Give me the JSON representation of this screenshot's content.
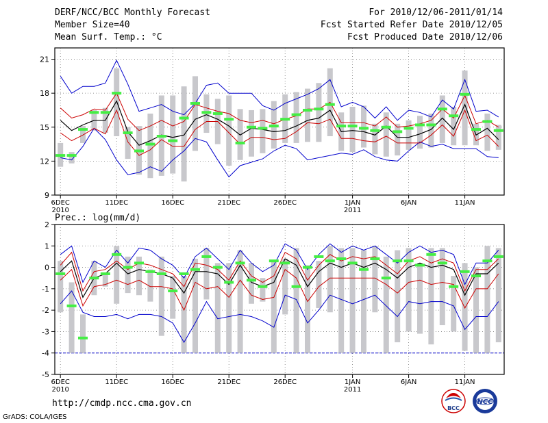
{
  "header": {
    "left": [
      "DERF/NCC/BCC Monthly Forecast",
      "Member Size=40",
      "Mean Surf. Temp.: °C"
    ],
    "right": [
      "For 2010/12/06-2011/01/14",
      "Fcst Started Refer Date 2010/12/05",
      "Fcst Produced Date 2010/12/06"
    ]
  },
  "footer": {
    "url": "http://cmdp.ncc.cma.gov.cn",
    "credit": "GrADS: COLA/IGES",
    "logo_left_text": "BCC",
    "logo_right_text": "NCC"
  },
  "colors": {
    "max_min": "#0000cc",
    "quartile": "#cc0000",
    "median": "#000000",
    "bar": "#c8c8cc",
    "mean": "#44ee44",
    "frame": "#000000"
  },
  "chart_data": [
    {
      "type": "line",
      "title": "Mean Surf. Temp.: °C",
      "ylim": [
        9,
        22
      ],
      "yticks": [
        9,
        12,
        15,
        18,
        21
      ],
      "xlim": [
        -0.5,
        39.5
      ],
      "xticks": [
        {
          "i": 0,
          "label": "6DEC",
          "year": "2010"
        },
        {
          "i": 5,
          "label": "11DEC"
        },
        {
          "i": 10,
          "label": "16DEC"
        },
        {
          "i": 15,
          "label": "21DEC"
        },
        {
          "i": 20,
          "label": "26DEC"
        },
        {
          "i": 26,
          "label": "1JAN",
          "year": "2011"
        },
        {
          "i": 31,
          "label": "6JAN"
        },
        {
          "i": 36,
          "label": "11JAN"
        }
      ],
      "series": [
        {
          "name": "max",
          "values": [
            19.5,
            18,
            18.6,
            18.6,
            18.9,
            20.9,
            18.8,
            16.4,
            16.7,
            17,
            16.4,
            16.1,
            17.1,
            18.7,
            18.9,
            18,
            18,
            18,
            16.9,
            16.5,
            17.1,
            17.5,
            17.9,
            18.4,
            19.2,
            16.8,
            17.2,
            16.8,
            15.8,
            16.8,
            15.6,
            16.5,
            16.3,
            15.9,
            17.4,
            16.6,
            19.2,
            16.4,
            16.5,
            15.9
          ]
        },
        {
          "name": "q_upper",
          "values": [
            16.7,
            15.8,
            16.1,
            16.6,
            16.5,
            18,
            15.7,
            14.7,
            15.1,
            15.6,
            15.1,
            15.5,
            17,
            16.7,
            16.4,
            16.2,
            15.6,
            15.4,
            15.6,
            15.3,
            15.7,
            16,
            16.6,
            16.6,
            17.2,
            15.4,
            15.4,
            15.4,
            15.1,
            15.9,
            15,
            15.1,
            15.3,
            15.6,
            16.6,
            15.8,
            17.8,
            15.3,
            15.6,
            15
          ]
        },
        {
          "name": "median",
          "values": [
            15.6,
            14.7,
            15.2,
            15.6,
            15.6,
            17.3,
            14.6,
            13.4,
            13.8,
            14.3,
            14.1,
            14.3,
            15.7,
            16.1,
            15.7,
            15.1,
            14.3,
            14.9,
            14.8,
            14.6,
            14.7,
            15.1,
            15.6,
            15.8,
            16.5,
            14.6,
            14.7,
            14.6,
            14.3,
            15.1,
            14.1,
            14.1,
            14.4,
            14.8,
            15.8,
            14.8,
            17,
            14.3,
            14.9,
            13.9
          ]
        },
        {
          "name": "q_lower",
          "values": [
            14.5,
            13.8,
            14.3,
            14.9,
            14.4,
            16.5,
            13.7,
            12.5,
            13,
            13.9,
            13.3,
            13.3,
            14.8,
            15.5,
            15.5,
            14.5,
            13.5,
            14.1,
            14.1,
            13.9,
            14,
            14.6,
            15.4,
            15.3,
            15.7,
            14,
            14,
            13.8,
            13.7,
            14.2,
            13.6,
            13.6,
            13.6,
            14.3,
            15.2,
            14.2,
            16.5,
            13.8,
            14.3,
            13.3
          ]
        },
        {
          "name": "min",
          "values": [
            12.3,
            12.1,
            13.3,
            14.9,
            13.9,
            12.1,
            10.8,
            11,
            11.5,
            11.1,
            12.1,
            12.9,
            14,
            13.7,
            12.1,
            10.6,
            11.6,
            11.9,
            12.2,
            12.9,
            13.4,
            13.1,
            12.1,
            12.3,
            12.5,
            12.7,
            12.6,
            13,
            12.4,
            12.1,
            12,
            12.9,
            13.7,
            13.3,
            13.5,
            13.1,
            13.1,
            13.1,
            12.4,
            12.3
          ]
        },
        {
          "name": "mean",
          "values": [
            12.5,
            12.5,
            14.8,
            16.3,
            16.3,
            18,
            14.5,
            12.9,
            13.5,
            14.2,
            13.8,
            15.8,
            17.1,
            16.3,
            16.2,
            15.7,
            13.6,
            15,
            14.9,
            15.1,
            15.7,
            16.1,
            16.5,
            16.6,
            17,
            15.1,
            15.1,
            14.9,
            14.7,
            15,
            14.6,
            14.9,
            15.2,
            15.2,
            16.6,
            16,
            17.9,
            14.8,
            15.5,
            14.7
          ]
        },
        {
          "name": "bar_low",
          "values": [
            11.5,
            11.8,
            13.6,
            14.7,
            14.5,
            14.2,
            12.2,
            10.8,
            10.5,
            10.7,
            10.9,
            10.2,
            12.9,
            14.5,
            13.5,
            11.6,
            12.1,
            12.4,
            12.7,
            13.1,
            13.6,
            13.6,
            13.7,
            13.7,
            14.2,
            12.9,
            12.8,
            13.2,
            12.6,
            12.4,
            12.5,
            13,
            13.1,
            13.2,
            13.6,
            13.4,
            13.4,
            13.4,
            12.9,
            13
          ]
        },
        {
          "name": "bar_high",
          "values": [
            13.6,
            12.8,
            15.1,
            16.5,
            16.7,
            20.2,
            15,
            15.1,
            16.2,
            17.8,
            17.8,
            18.6,
            19.5,
            17.9,
            17.5,
            17.8,
            16.6,
            16.5,
            16.6,
            17.3,
            17.9,
            18.1,
            18.4,
            18.9,
            20.2,
            16.3,
            16.8,
            16.9,
            15.3,
            16.3,
            15.3,
            15.6,
            16,
            16.2,
            17.8,
            16.8,
            20,
            15.3,
            16.2,
            15.2
          ]
        }
      ]
    },
    {
      "type": "line",
      "title": "Prec.: log(mm/d)",
      "ylim": [
        -5,
        2
      ],
      "yticks": [
        -5,
        -4,
        -3,
        -2,
        -1,
        0,
        1,
        2
      ],
      "xlim": [
        -0.5,
        39.5
      ],
      "xticks": [
        {
          "i": 0,
          "label": "6DEC",
          "year": "2010"
        },
        {
          "i": 5,
          "label": "11DEC"
        },
        {
          "i": 10,
          "label": "16DEC"
        },
        {
          "i": 15,
          "label": "21DEC"
        },
        {
          "i": 20,
          "label": "26DEC"
        },
        {
          "i": 26,
          "label": "1JAN",
          "year": "2011"
        },
        {
          "i": 31,
          "label": "6JAN"
        },
        {
          "i": 36,
          "label": "11JAN"
        }
      ],
      "baseline": -4,
      "series": [
        {
          "name": "max",
          "values": [
            0.6,
            1,
            -0.7,
            0.3,
            0,
            0.8,
            0.2,
            0.9,
            0.8,
            0.4,
            0.1,
            -0.5,
            0.5,
            0.9,
            0.4,
            -0.1,
            0.8,
            0.2,
            -0.2,
            0.1,
            1.1,
            0.8,
            -0.1,
            0.6,
            1.1,
            0.7,
            1.0,
            0.8,
            1.0,
            0.6,
            0.2,
            0.7,
            1.0,
            0.7,
            0.8,
            0.6,
            -0.8,
            0.2,
            0.2,
            0.8
          ]
        },
        {
          "name": "q_upper",
          "values": [
            0.1,
            0.7,
            -1.1,
            -0.2,
            -0.1,
            0.3,
            -0.1,
            0.2,
            0.1,
            -0.1,
            -0.3,
            -0.9,
            0.2,
            0.1,
            -0.1,
            -0.6,
            0.3,
            -0.4,
            -0.7,
            -0.4,
            0.7,
            0.4,
            -0.6,
            0.1,
            0.6,
            0.3,
            0.5,
            0.4,
            0.5,
            0.1,
            -0.3,
            0.3,
            0.5,
            0.2,
            0.4,
            0.2,
            -1.1,
            -0.1,
            -0.1,
            0.4
          ]
        },
        {
          "name": "median",
          "values": [
            -0.2,
            0.3,
            -1.4,
            -0.5,
            -0.3,
            0.2,
            -0.3,
            -0.1,
            -0.2,
            -0.3,
            -0.5,
            -1.2,
            -0.2,
            -0.2,
            -0.3,
            -0.8,
            0.1,
            -0.7,
            -0.9,
            -0.7,
            0.4,
            0.1,
            -0.9,
            -0.2,
            0.2,
            0.0,
            0.2,
            0.0,
            0.2,
            -0.1,
            -0.5,
            0.0,
            0.2,
            0.0,
            0.1,
            -0.1,
            -1.3,
            -0.3,
            -0.3,
            0.2
          ]
        },
        {
          "name": "q_lower",
          "values": [
            -0.6,
            -0.1,
            -1.8,
            -0.9,
            -0.8,
            -0.6,
            -0.8,
            -0.6,
            -0.9,
            -0.9,
            -1.0,
            -2.0,
            -0.7,
            -1.0,
            -0.9,
            -1.4,
            -0.6,
            -1.3,
            -1.5,
            -1.4,
            -0.1,
            -0.5,
            -1.6,
            -0.9,
            -0.5,
            -0.5,
            -0.5,
            -0.5,
            -0.5,
            -0.8,
            -1.2,
            -0.7,
            -0.6,
            -0.8,
            -0.7,
            -0.8,
            -1.9,
            -1.0,
            -1.0,
            -0.3
          ]
        },
        {
          "name": "min",
          "values": [
            -1.7,
            -1.1,
            -2.1,
            -2.3,
            -2.3,
            -2.2,
            -2.4,
            -2.2,
            -2.2,
            -2.3,
            -2.6,
            -3.5,
            -2.6,
            -1.6,
            -2.4,
            -2.3,
            -2.2,
            -2.3,
            -2.5,
            -2.8,
            -1.3,
            -1.5,
            -2.6,
            -2.0,
            -1.3,
            -1.5,
            -1.7,
            -1.5,
            -1.3,
            -1.8,
            -2.3,
            -1.6,
            -1.7,
            -1.6,
            -1.6,
            -1.8,
            -2.9,
            -2.3,
            -2.3,
            -1.6
          ]
        },
        {
          "name": "mean",
          "values": [
            -0.3,
            -1.8,
            -3.3,
            -0.5,
            -0.3,
            0.6,
            0.0,
            0.2,
            -0.2,
            -0.3,
            -1.1,
            -0.3,
            -0.1,
            0.5,
            0.0,
            -0.7,
            0.2,
            -0.6,
            -0.9,
            0.3,
            0.2,
            -0.9,
            0.0,
            0.5,
            0.3,
            0.4,
            0.2,
            -0.1,
            0.4,
            -0.5,
            0.3,
            0.3,
            0.1,
            0.6,
            0.2,
            -0.9,
            -0.2,
            -0.4,
            0.3,
            0.5
          ]
        },
        {
          "name": "bar_low",
          "values": [
            -2.1,
            -4,
            -4,
            -1.3,
            -0.9,
            -1.7,
            -1.2,
            -1.3,
            -1.6,
            -3.2,
            -2.4,
            -4,
            -4,
            -1.5,
            -4,
            -4,
            -4,
            -1.7,
            -1.6,
            -4,
            -2.2,
            -4,
            -4,
            -1.9,
            -2.1,
            -4,
            -4,
            -4,
            -2.1,
            -4,
            -3.5,
            -3,
            -3.1,
            -3.6,
            -2.7,
            -3,
            -3.9,
            -4,
            -4,
            -3.5
          ]
        },
        {
          "name": "bar_high",
          "values": [
            0.3,
            -0.7,
            -2.2,
            0.3,
            -0.3,
            1,
            0.5,
            0.5,
            -0.1,
            0.5,
            -0.4,
            -0.4,
            0.4,
            0.9,
            0.2,
            0.2,
            0.8,
            0.2,
            -0.5,
            0.3,
            0.4,
            0.9,
            0.1,
            0.3,
            1.0,
            0.9,
            0.9,
            0.8,
            1.0,
            0.5,
            0.8,
            0.9,
            0.2,
            0.9,
            0.9,
            -0.4,
            0.2,
            0.0,
            1.0,
            0.9
          ]
        }
      ]
    }
  ]
}
